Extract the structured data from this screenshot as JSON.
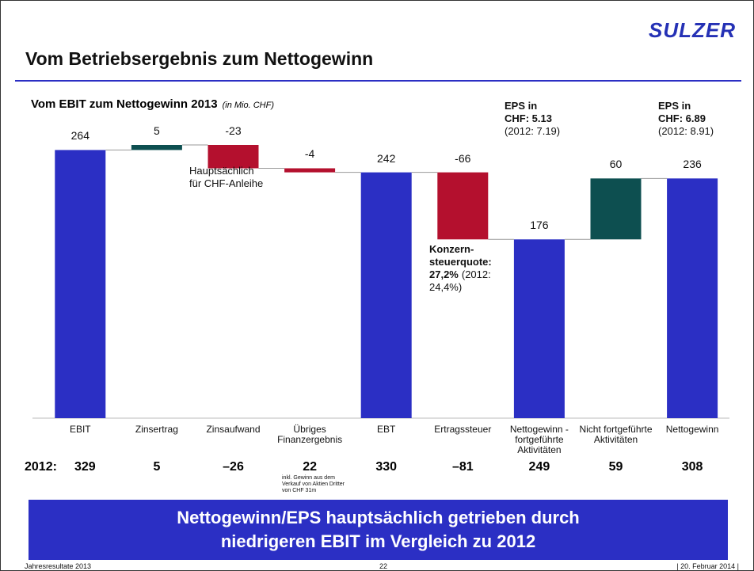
{
  "header": {
    "logo": "SULZER",
    "title": "Vom Betriebsergebnis zum Nettogewinn"
  },
  "chart_data": {
    "type": "waterfall",
    "title": "Vom EBIT zum Nettogewinn 2013",
    "subtitle": "(in Mio. CHF)",
    "categories": [
      "EBIT",
      "Zinsertrag",
      "Zinsaufwand",
      "Übriges Finanzergebnis",
      "EBT",
      "Ertragssteuer",
      "Nettogewinn - fortgeführte Aktivitäten",
      "Nicht fortgeführte Aktivitäten",
      "Nettogewinn"
    ],
    "values": [
      264,
      5,
      -23,
      -4,
      242,
      -66,
      176,
      60,
      236
    ],
    "totals": [
      true,
      false,
      false,
      false,
      true,
      false,
      true,
      false,
      true
    ],
    "colors": {
      "total": "#2b2fc4",
      "increase": "#0d4f50",
      "decrease": "#b4102e"
    },
    "annotations": [
      {
        "lines": [
          [
            {
              "text": "Hauptsächlich",
              "bold": false
            }
          ],
          [
            {
              "text": "für CHF-Anleihe",
              "bold": false
            }
          ]
        ]
      },
      {
        "lines": [
          [
            {
              "text": "EPS in",
              "bold": true
            }
          ],
          [
            {
              "text": "CHF: 5.13",
              "bold": true
            }
          ],
          [
            {
              "text": "(2012: 7.19)",
              "bold": false
            }
          ]
        ]
      },
      {
        "lines": [
          [
            {
              "text": "EPS in",
              "bold": true
            }
          ],
          [
            {
              "text": "CHF: 6.89",
              "bold": true
            }
          ],
          [
            {
              "text": "(2012: 8.91)",
              "bold": false
            }
          ]
        ]
      },
      {
        "lines": [
          [
            {
              "text": "Konzern-",
              "bold": true
            }
          ],
          [
            {
              "text": "steuerquote:",
              "bold": true
            }
          ],
          [
            {
              "text": "27,2%",
              "bold": true
            },
            {
              "text": "(2012:",
              "bold": false
            }
          ],
          [
            {
              "text": "24,4%)",
              "bold": false
            }
          ]
        ]
      }
    ],
    "prior_year": {
      "label": "2012:",
      "values": [
        329,
        5,
        -26,
        22,
        330,
        -81,
        249,
        59,
        308
      ],
      "value_labels": [
        "329",
        "5",
        "–26",
        "22",
        "330",
        "–81",
        "249",
        "59",
        "308"
      ],
      "note": [
        "inkl. Gewinn aus dem",
        "Verkauf von Aktien Dritter",
        "von CHF 31m"
      ]
    }
  },
  "banner": [
    "Nettogewinn/EPS hauptsächlich getrieben durch",
    "niedrigeren EBIT im Vergleich zu 2012"
  ],
  "footer": {
    "left": "Jahresresultate 2013",
    "center": "22",
    "right": "| 20. Februar 2014 |"
  }
}
